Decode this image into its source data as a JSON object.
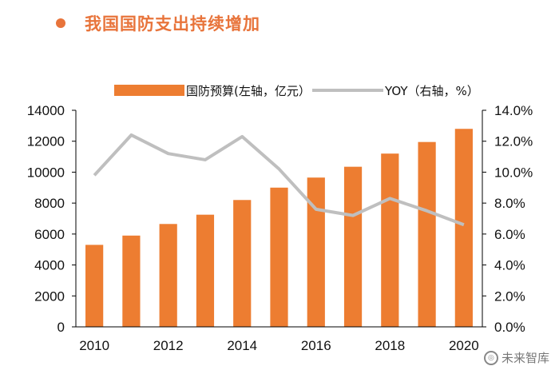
{
  "title": "我国国防支出持续增加",
  "watermark": "未来智库",
  "colors": {
    "accent": "#e8743b",
    "bar": "#ed7d31",
    "line": "#bfbfbf"
  },
  "chart_data": {
    "type": "bar",
    "title": "我国国防支出持续增加",
    "categories": [
      "2010",
      "2011",
      "2012",
      "2013",
      "2014",
      "2015",
      "2016",
      "2017",
      "2018",
      "2019",
      "2020"
    ],
    "x_tick_labels": [
      "2010",
      "2012",
      "2014",
      "2016",
      "2018",
      "2020"
    ],
    "series": [
      {
        "name": "国防预算(左轴，亿元）",
        "kind": "bar",
        "axis": "left",
        "values": [
          5300,
          5900,
          6650,
          7250,
          8200,
          9000,
          9650,
          10350,
          11200,
          11950,
          12800
        ]
      },
      {
        "name": "YOY（右轴，%）",
        "kind": "line",
        "axis": "right",
        "values": [
          9.8,
          12.4,
          11.2,
          10.8,
          12.3,
          10.2,
          7.6,
          7.2,
          8.3,
          7.5,
          6.6
        ]
      }
    ],
    "y_left": {
      "ylim": [
        0,
        14000
      ],
      "ticks": [
        "0",
        "2000",
        "4000",
        "6000",
        "8000",
        "10000",
        "12000",
        "14000"
      ]
    },
    "y_right": {
      "ylim": [
        0,
        14
      ],
      "ticks": [
        "0.0%",
        "2.0%",
        "4.0%",
        "6.0%",
        "8.0%",
        "10.0%",
        "12.0%",
        "14.0%"
      ]
    },
    "legend_position": "top"
  }
}
